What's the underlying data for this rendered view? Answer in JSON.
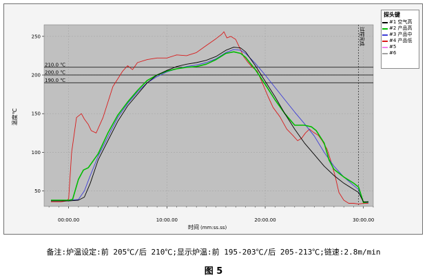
{
  "note": "备注:炉温设定:前 205℃/后 210℃;显示炉温:前 195-203℃/后 205-213℃;链速:2.8m/min",
  "figure_label": "图 5",
  "legend": {
    "title": "探头键",
    "items": [
      {
        "label": "#1 空气高",
        "color": "#000000"
      },
      {
        "label": "#2 产品高",
        "color": "#00bb00"
      },
      {
        "label": "#3 产品中",
        "color": "#3b3bd6"
      },
      {
        "label": "#4 产品低",
        "color": "#d81a1a"
      },
      {
        "label": "#5",
        "color": "#f080f0"
      },
      {
        "label": "#6",
        "color": "#a0a0a0"
      }
    ]
  },
  "chart_data": {
    "type": "line",
    "xlabel": "时间",
    "xlabel_unit": "(mm:ss.ss)",
    "ylabel": "温度℃",
    "xlim": [
      -2.5,
      31
    ],
    "ylim": [
      30,
      265
    ],
    "x_ticks": [
      0,
      10,
      20,
      30
    ],
    "x_tick_labels": [
      "00:00.00",
      "10:00.00",
      "20:00.00",
      "30:00.00"
    ],
    "y_ticks": [
      50,
      100,
      150,
      200,
      250
    ],
    "y_tick_labels": [
      "50",
      "100",
      "150",
      "200",
      "250"
    ],
    "reference_lines": [
      {
        "value": 210,
        "label": "210.0 ℃"
      },
      {
        "value": 200,
        "label": "200.0 ℃"
      },
      {
        "value": 190,
        "label": "190.0 ℃"
      }
    ],
    "vertical_marker": {
      "x": 29.5,
      "label": "过程完成"
    },
    "series": [
      {
        "name": "#1 空气高",
        "color": "#000000",
        "x": [
          -1.8,
          0,
          1,
          1.6,
          2.2,
          3,
          4,
          5,
          6,
          7,
          8,
          9,
          10,
          11,
          12,
          13,
          14,
          15,
          16,
          16.8,
          17.5,
          18,
          19,
          20,
          21,
          22,
          23,
          24,
          25,
          26,
          27,
          28,
          29,
          29.5,
          30,
          30.5
        ],
        "y": [
          37,
          37,
          38,
          42,
          60,
          90,
          115,
          140,
          160,
          175,
          190,
          200,
          206,
          211,
          214,
          216,
          219,
          224,
          232,
          236,
          235,
          230,
          212,
          192,
          172,
          150,
          130,
          112,
          97,
          82,
          70,
          60,
          52,
          48,
          36,
          36
        ]
      },
      {
        "name": "#2 产品高",
        "color": "#00bb00",
        "x": [
          -1.8,
          0,
          0.4,
          1,
          1.5,
          2,
          3,
          4,
          5,
          6,
          7,
          8,
          9,
          10,
          11,
          12,
          13,
          14,
          15,
          16,
          16.8,
          17.5,
          18,
          19,
          20,
          21,
          22,
          23,
          24,
          24.7,
          25.2,
          26,
          26.5,
          27,
          28,
          29,
          29.5,
          30,
          30.5
        ],
        "y": [
          38,
          38,
          39,
          65,
          77,
          80,
          98,
          125,
          148,
          165,
          180,
          193,
          200,
          205,
          208,
          210,
          211,
          214,
          220,
          228,
          230,
          228,
          223,
          207,
          188,
          168,
          150,
          135,
          135,
          133,
          128,
          112,
          90,
          78,
          68,
          60,
          55,
          35,
          36
        ]
      },
      {
        "name": "#3 产品中",
        "color": "#3b3bd6",
        "x": [
          -1.8,
          0,
          1,
          1.6,
          2.2,
          3,
          4,
          5,
          6,
          7,
          8,
          9,
          10,
          11,
          12,
          13,
          14,
          15,
          16,
          16.8,
          17.5,
          18,
          19,
          20,
          21,
          22,
          23,
          24,
          25,
          26,
          27,
          28,
          29,
          29.5,
          30,
          30.5
        ],
        "y": [
          38,
          38,
          39,
          50,
          70,
          95,
          120,
          145,
          163,
          178,
          190,
          198,
          204,
          208,
          211,
          213,
          216,
          221,
          229,
          233,
          232,
          228,
          215,
          200,
          184,
          168,
          152,
          137,
          121,
          100,
          82,
          68,
          57,
          52,
          35,
          35
        ]
      },
      {
        "name": "#4 产品低",
        "color": "#d81a1a",
        "x": [
          -1.8,
          -0.8,
          -0.2,
          0,
          0.3,
          0.8,
          1.3,
          1.6,
          2,
          2.3,
          2.8,
          3.5,
          4.5,
          5.5,
          6,
          6.5,
          7,
          8,
          9,
          10,
          11,
          12,
          13,
          14,
          15,
          15.6,
          15.8,
          16.1,
          16.5,
          17,
          17.3,
          17.8,
          18.2,
          18.7,
          19.2,
          19.8,
          20.3,
          20.8,
          21.5,
          22.2,
          22.8,
          23.3,
          23.7,
          24.1,
          24.5,
          24.9,
          25.4,
          25.8,
          26.3,
          26.7,
          27.1,
          27.5,
          28,
          28.5,
          29,
          29.5,
          30,
          30.5
        ],
        "y": [
          36,
          36,
          37,
          40,
          100,
          145,
          150,
          143,
          136,
          128,
          125,
          145,
          185,
          205,
          212,
          207,
          216,
          220,
          222,
          222,
          226,
          225,
          229,
          238,
          247,
          253,
          256,
          248,
          250,
          246,
          238,
          224,
          217,
          210,
          205,
          187,
          172,
          158,
          146,
          130,
          122,
          115,
          118,
          125,
          130,
          126,
          122,
          115,
          104,
          88,
          70,
          48,
          38,
          34,
          34,
          33,
          34,
          34
        ]
      }
    ]
  }
}
